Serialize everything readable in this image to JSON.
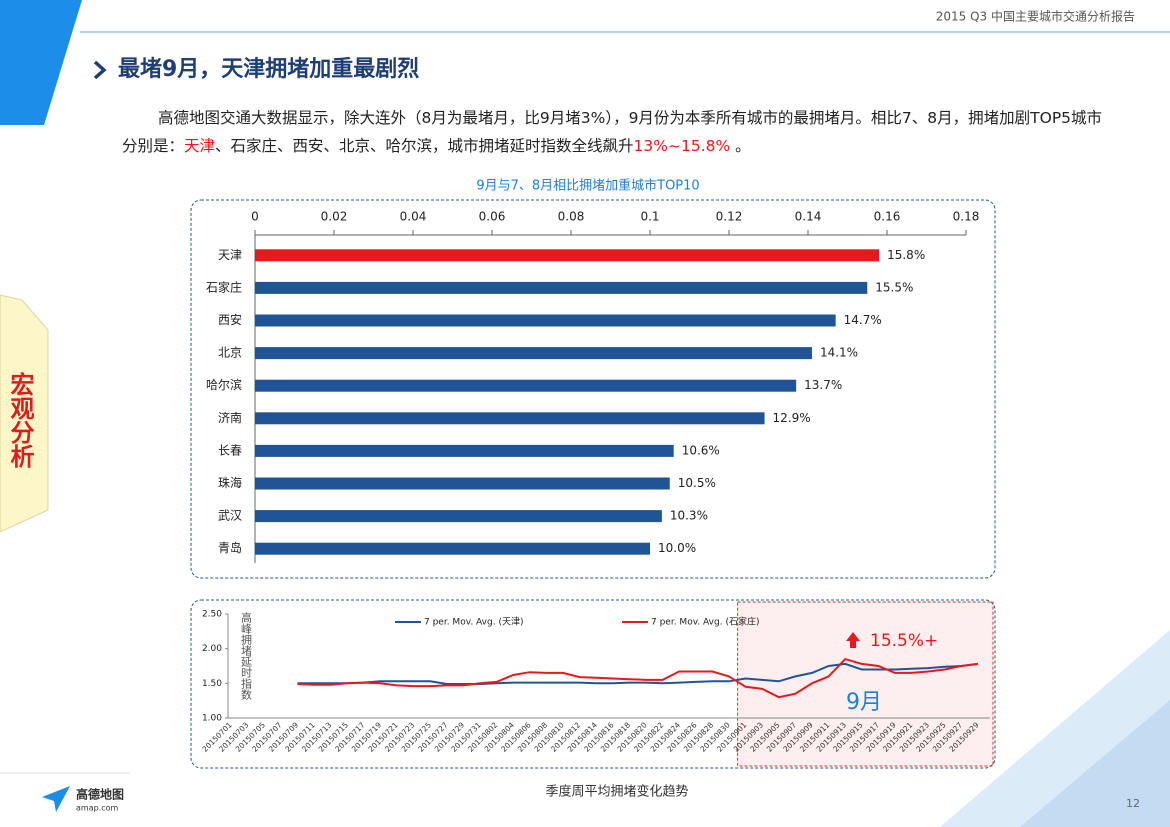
{
  "header": {
    "report": "2015 Q3 中国主要城市交通分析报告",
    "title": "最堵9月，天津拥堵加重最剧烈"
  },
  "paragraph": [
    {
      "text": "高德地图交通大数据显示，除大连外（8月为最堵月，比9月堵3%），9月份为本季所有城市的最拥堵月。相比7、8月，拥堵加剧TOP5城市分别是：",
      "highlight": false
    },
    {
      "text": "天津",
      "highlight": true
    },
    {
      "text": "、石家庄、西安、北京、哈尔滨，城市拥堵延时指数全线飙升",
      "highlight": false
    },
    {
      "text": "13%~15.8%",
      "highlight": true
    },
    {
      "text": " 。",
      "highlight": false
    }
  ],
  "side_tab": "宏观分析",
  "logo": {
    "name": "高德地图",
    "site": "amap.com"
  },
  "page_number": "12",
  "chart_data": [
    {
      "type": "bar",
      "orientation": "horizontal",
      "title": "9月与7、8月相比拥堵加重城市TOP10",
      "categories": [
        "天津",
        "石家庄",
        "西安",
        "北京",
        "哈尔滨",
        "济南",
        "长春",
        "珠海",
        "武汉",
        "青岛"
      ],
      "values": [
        0.158,
        0.155,
        0.147,
        0.141,
        0.137,
        0.129,
        0.106,
        0.105,
        0.103,
        0.1
      ],
      "value_labels": [
        "15.8%",
        "15.5%",
        "14.7%",
        "14.1%",
        "13.7%",
        "12.9%",
        "10.6%",
        "10.5%",
        "10.3%",
        "10.0%"
      ],
      "colors": [
        "#e8181c",
        "#1f5596",
        "#1f5596",
        "#1f5596",
        "#1f5596",
        "#1f5596",
        "#1f5596",
        "#1f5596",
        "#1f5596",
        "#1f5596"
      ],
      "xlim": [
        0,
        0.18
      ],
      "xticks": [
        0,
        0.02,
        0.04,
        0.06,
        0.08,
        0.1,
        0.12,
        0.14,
        0.16,
        0.18
      ]
    },
    {
      "type": "line",
      "caption": "季度周平均拥堵变化趋势",
      "ylabel": "高峰拥堵延时指数",
      "categories": [
        "20150701",
        "20150703",
        "20150705",
        "20150707",
        "20150709",
        "20150711",
        "20150713",
        "20150715",
        "20150717",
        "20150719",
        "20150721",
        "20150723",
        "20150725",
        "20150727",
        "20150729",
        "20150731",
        "20150802",
        "20150804",
        "20150806",
        "20150808",
        "20150810",
        "20150812",
        "20150814",
        "20150816",
        "20150818",
        "20150820",
        "20150822",
        "20150824",
        "20150826",
        "20150828",
        "20150830",
        "20150901",
        "20150903",
        "20150905",
        "20150907",
        "20150909",
        "20150911",
        "20150913",
        "20150915",
        "20150917",
        "20150919",
        "20150921",
        "20150923",
        "20150925",
        "20150927",
        "20150929"
      ],
      "series": [
        {
          "name": "7 per. Mov. Avg. (天津)",
          "color": "#1f5596",
          "values": [
            null,
            null,
            null,
            null,
            1.5,
            1.5,
            1.5,
            1.5,
            1.51,
            1.53,
            1.53,
            1.53,
            1.53,
            1.49,
            1.49,
            1.49,
            1.5,
            1.51,
            1.51,
            1.51,
            1.51,
            1.51,
            1.5,
            1.5,
            1.51,
            1.51,
            1.5,
            1.51,
            1.52,
            1.53,
            1.53,
            1.57,
            1.55,
            1.53,
            1.6,
            1.65,
            1.75,
            1.78,
            1.7,
            1.7,
            1.7,
            1.71,
            1.72,
            1.74,
            1.75,
            1.78
          ]
        },
        {
          "name": "7 per. Mov. Avg. (石家庄)",
          "color": "#e8181c",
          "values": [
            null,
            null,
            null,
            null,
            1.49,
            1.48,
            1.48,
            1.5,
            1.51,
            1.5,
            1.47,
            1.46,
            1.46,
            1.47,
            1.47,
            1.5,
            1.52,
            1.62,
            1.66,
            1.65,
            1.65,
            1.59,
            1.58,
            1.57,
            1.56,
            1.55,
            1.55,
            1.67,
            1.67,
            1.67,
            1.6,
            1.45,
            1.42,
            1.3,
            1.35,
            1.5,
            1.6,
            1.85,
            1.78,
            1.75,
            1.65,
            1.65,
            1.67,
            1.7,
            1.75,
            1.78
          ]
        }
      ],
      "ylim": [
        1,
        2.5
      ],
      "yticks": [
        {
          "value": 1,
          "label": "1.00"
        },
        {
          "value": 1.5,
          "label": "1.50"
        },
        {
          "value": 2,
          "label": "2.00"
        },
        {
          "value": 2.5,
          "label": "2.50"
        }
      ],
      "highlight_from": "20150901",
      "annotations": [
        "15.5%+",
        "9月"
      ]
    }
  ]
}
